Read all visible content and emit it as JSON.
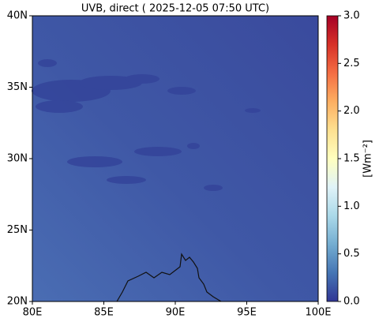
{
  "chart_data": {
    "type": "map",
    "title": "UVB, direct ( 2025-12-05 07:50 UTC)",
    "xlim": [
      80,
      100
    ],
    "ylim": [
      20,
      40
    ],
    "xticks": [
      {
        "value": 80,
        "label": "80E"
      },
      {
        "value": 85,
        "label": "85E"
      },
      {
        "value": 90,
        "label": "90E"
      },
      {
        "value": 95,
        "label": "95E"
      },
      {
        "value": 100,
        "label": "100E"
      }
    ],
    "yticks": [
      {
        "value": 20,
        "label": "20N"
      },
      {
        "value": 25,
        "label": "25N"
      },
      {
        "value": 30,
        "label": "30N"
      },
      {
        "value": 35,
        "label": "35N"
      },
      {
        "value": 40,
        "label": "40N"
      }
    ],
    "colorbar": {
      "label": "[Wm⁻²]",
      "lim": [
        0,
        3
      ],
      "ticks": [
        {
          "value": 0,
          "label": "0.0"
        },
        {
          "value": 0.5,
          "label": "0.5"
        },
        {
          "value": 1,
          "label": "1.0"
        },
        {
          "value": 1.5,
          "label": "1.5"
        },
        {
          "value": 2,
          "label": "2.0"
        },
        {
          "value": 2.5,
          "label": "2.5"
        },
        {
          "value": 3,
          "label": "3.0"
        }
      ],
      "colors": [
        "#313695",
        "#4575b4",
        "#74add1",
        "#abd9e9",
        "#e0f3f8",
        "#ffffbf",
        "#fee090",
        "#fdae61",
        "#f46d43",
        "#d73027",
        "#a50026"
      ]
    }
  }
}
